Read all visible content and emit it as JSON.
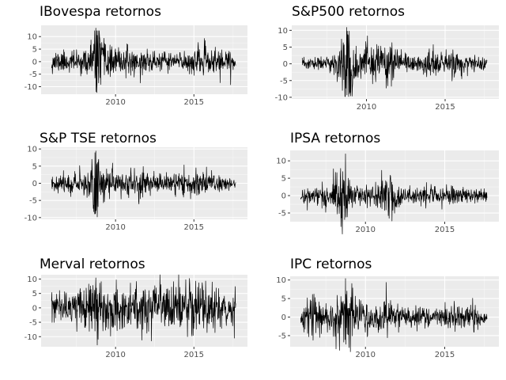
{
  "chart_data": [
    {
      "type": "line",
      "title": "IBovespa retornos",
      "x_range": [
        "2005-04",
        "2018-06"
      ],
      "x_ticks": [
        "2010",
        "2015"
      ],
      "ylim": [
        -13,
        14.5
      ],
      "y_ticks": [
        -10,
        -5,
        0,
        5,
        10
      ],
      "series_color": "#000000",
      "grid": true,
      "seed": 11,
      "profile": {
        "x": [
          "2005-12",
          "2008-01",
          "2008-09",
          "2008-11",
          "2009-03",
          "2009-12",
          "2011-08",
          "2013-01",
          "2015-06",
          "2016-02",
          "2017-05",
          "2017-09"
        ],
        "y": [
          2.2,
          2.0,
          6.0,
          12.0,
          4.0,
          2.5,
          2.4,
          1.8,
          2.6,
          2.8,
          2.0,
          1.6
        ]
      },
      "spikes": [
        {
          "x": "2008-10",
          "y": 13.4
        },
        {
          "x": "2008-10",
          "y": -12.0
        },
        {
          "x": "2008-11",
          "y": 10.5
        },
        {
          "x": "2008-12",
          "y": -8.5
        },
        {
          "x": "2011-08",
          "y": -8.5
        },
        {
          "x": "2015-10",
          "y": 6.2
        },
        {
          "x": "2017-05",
          "y": -9.2
        }
      ]
    },
    {
      "type": "line",
      "title": "S&P500 retornos",
      "x_range": [
        "2005-04",
        "2018-06"
      ],
      "x_ticks": [
        "2010",
        "2015"
      ],
      "ylim": [
        -10.5,
        11.5
      ],
      "y_ticks": [
        -10,
        -5,
        0,
        5,
        10
      ],
      "series_color": "#000000",
      "grid": true,
      "seed": 23,
      "profile": {
        "x": [
          "2005-12",
          "2007-03",
          "2008-01",
          "2008-09",
          "2008-11",
          "2009-04",
          "2010-05",
          "2011-08",
          "2012-06",
          "2015-08",
          "2016-06",
          "2017-09"
        ],
        "y": [
          0.9,
          1.0,
          1.8,
          5.0,
          10.0,
          3.0,
          2.4,
          3.0,
          1.4,
          1.9,
          1.3,
          0.8
        ]
      },
      "spikes": [
        {
          "x": "2008-10",
          "y": 10.9
        },
        {
          "x": "2008-10",
          "y": -9.3
        },
        {
          "x": "2008-12",
          "y": -9.0
        },
        {
          "x": "2008-11",
          "y": 8.5
        },
        {
          "x": "2011-08",
          "y": -6.7
        },
        {
          "x": "2011-08",
          "y": 4.7
        },
        {
          "x": "2015-08",
          "y": -4.0
        },
        {
          "x": "2016-06",
          "y": -3.6
        }
      ]
    },
    {
      "type": "line",
      "title": "S&P TSE retornos",
      "x_range": [
        "2005-04",
        "2018-06"
      ],
      "x_ticks": [
        "2010",
        "2015"
      ],
      "ylim": [
        -10.5,
        10.5
      ],
      "y_ticks": [
        -10,
        -5,
        0,
        5,
        10
      ],
      "series_color": "#000000",
      "grid": true,
      "seed": 37,
      "profile": {
        "x": [
          "2005-12",
          "2007-08",
          "2008-06",
          "2008-10",
          "2008-12",
          "2009-05",
          "2010-06",
          "2011-08",
          "2012-06",
          "2014-12",
          "2016-02",
          "2017-09"
        ],
        "y": [
          1.0,
          1.6,
          2.0,
          8.5,
          6.0,
          2.5,
          1.6,
          2.3,
          1.2,
          1.9,
          1.6,
          0.8
        ]
      },
      "spikes": [
        {
          "x": "2008-10",
          "y": 9.4
        },
        {
          "x": "2008-11",
          "y": -9.8
        },
        {
          "x": "2008-12",
          "y": 7.0
        },
        {
          "x": "2008-10",
          "y": -8.0
        },
        {
          "x": "2011-08",
          "y": -4.5
        },
        {
          "x": "2015-08",
          "y": 3.2
        }
      ]
    },
    {
      "type": "line",
      "title": "IPSA retornos",
      "x_range": [
        "2005-04",
        "2018-06"
      ],
      "x_ticks": [
        "2010",
        "2015"
      ],
      "ylim": [
        -7.5,
        13
      ],
      "y_ticks": [
        -5,
        0,
        5,
        10
      ],
      "series_color": "#000000",
      "grid": true,
      "seed": 41,
      "profile": {
        "x": [
          "2005-12",
          "2007-08",
          "2008-10",
          "2009-03",
          "2010-06",
          "2011-08",
          "2011-12",
          "2012-06",
          "2015-06",
          "2017-09"
        ],
        "y": [
          1.1,
          1.5,
          4.0,
          2.0,
          1.5,
          3.5,
          2.5,
          1.2,
          1.4,
          0.9
        ]
      },
      "spikes": [
        {
          "x": "2008-10",
          "y": 12.0
        },
        {
          "x": "2008-10",
          "y": -6.2
        },
        {
          "x": "2008-12",
          "y": 5.0
        },
        {
          "x": "2011-08",
          "y": 5.6
        },
        {
          "x": "2011-09",
          "y": -7.3
        },
        {
          "x": "2007-07",
          "y": -4.8
        },
        {
          "x": "2006-05",
          "y": -4.2
        }
      ]
    },
    {
      "type": "line",
      "title": "Merval retornos",
      "x_range": [
        "2005-04",
        "2018-06"
      ],
      "x_ticks": [
        "2010",
        "2015"
      ],
      "ylim": [
        -13.5,
        11.5
      ],
      "y_ticks": [
        -10,
        -5,
        0,
        5,
        10
      ],
      "series_color": "#000000",
      "grid": true,
      "seed": 53,
      "profile": {
        "x": [
          "2005-12",
          "2007-06",
          "2008-09",
          "2008-11",
          "2009-05",
          "2011-08",
          "2013-06",
          "2014-06",
          "2015-10",
          "2016-06",
          "2017-09"
        ],
        "y": [
          2.3,
          2.6,
          5.5,
          7.5,
          3.6,
          3.8,
          3.8,
          4.5,
          4.5,
          3.5,
          3.0
        ]
      },
      "spikes": [
        {
          "x": "2008-10",
          "y": 10.4
        },
        {
          "x": "2008-11",
          "y": -12.9
        },
        {
          "x": "2009-01",
          "y": 8.6
        },
        {
          "x": "2011-09",
          "y": -11.2
        },
        {
          "x": "2013-08",
          "y": 7.2
        },
        {
          "x": "2014-08",
          "y": -10.0
        },
        {
          "x": "2015-10",
          "y": 9.3
        },
        {
          "x": "2015-11",
          "y": -8.6
        },
        {
          "x": "2017-08",
          "y": -10.5
        },
        {
          "x": "2006-06",
          "y": 6.0
        }
      ]
    },
    {
      "type": "line",
      "title": "IPC retornos",
      "x_range": [
        "2005-04",
        "2018-06"
      ],
      "x_ticks": [
        "2010",
        "2015"
      ],
      "ylim": [
        -8,
        11
      ],
      "y_ticks": [
        -5,
        0,
        5,
        10
      ],
      "series_color": "#000000",
      "grid": true,
      "seed": 67,
      "profile": {
        "x": [
          "2005-12",
          "2006-06",
          "2007-03",
          "2008-01",
          "2008-10",
          "2009-04",
          "2010-05",
          "2011-08",
          "2012-06",
          "2016-11",
          "2017-09"
        ],
        "y": [
          1.4,
          2.6,
          2.0,
          2.4,
          6.5,
          3.0,
          1.9,
          2.6,
          1.3,
          1.6,
          0.9
        ]
      },
      "spikes": [
        {
          "x": "2008-10",
          "y": 10.4
        },
        {
          "x": "2008-10",
          "y": -7.3
        },
        {
          "x": "2008-11",
          "y": 7.0
        },
        {
          "x": "2006-05",
          "y": 5.2
        },
        {
          "x": "2006-06",
          "y": -5.3
        },
        {
          "x": "2011-08",
          "y": 4.5
        },
        {
          "x": "2016-11",
          "y": -4.0
        }
      ]
    }
  ]
}
